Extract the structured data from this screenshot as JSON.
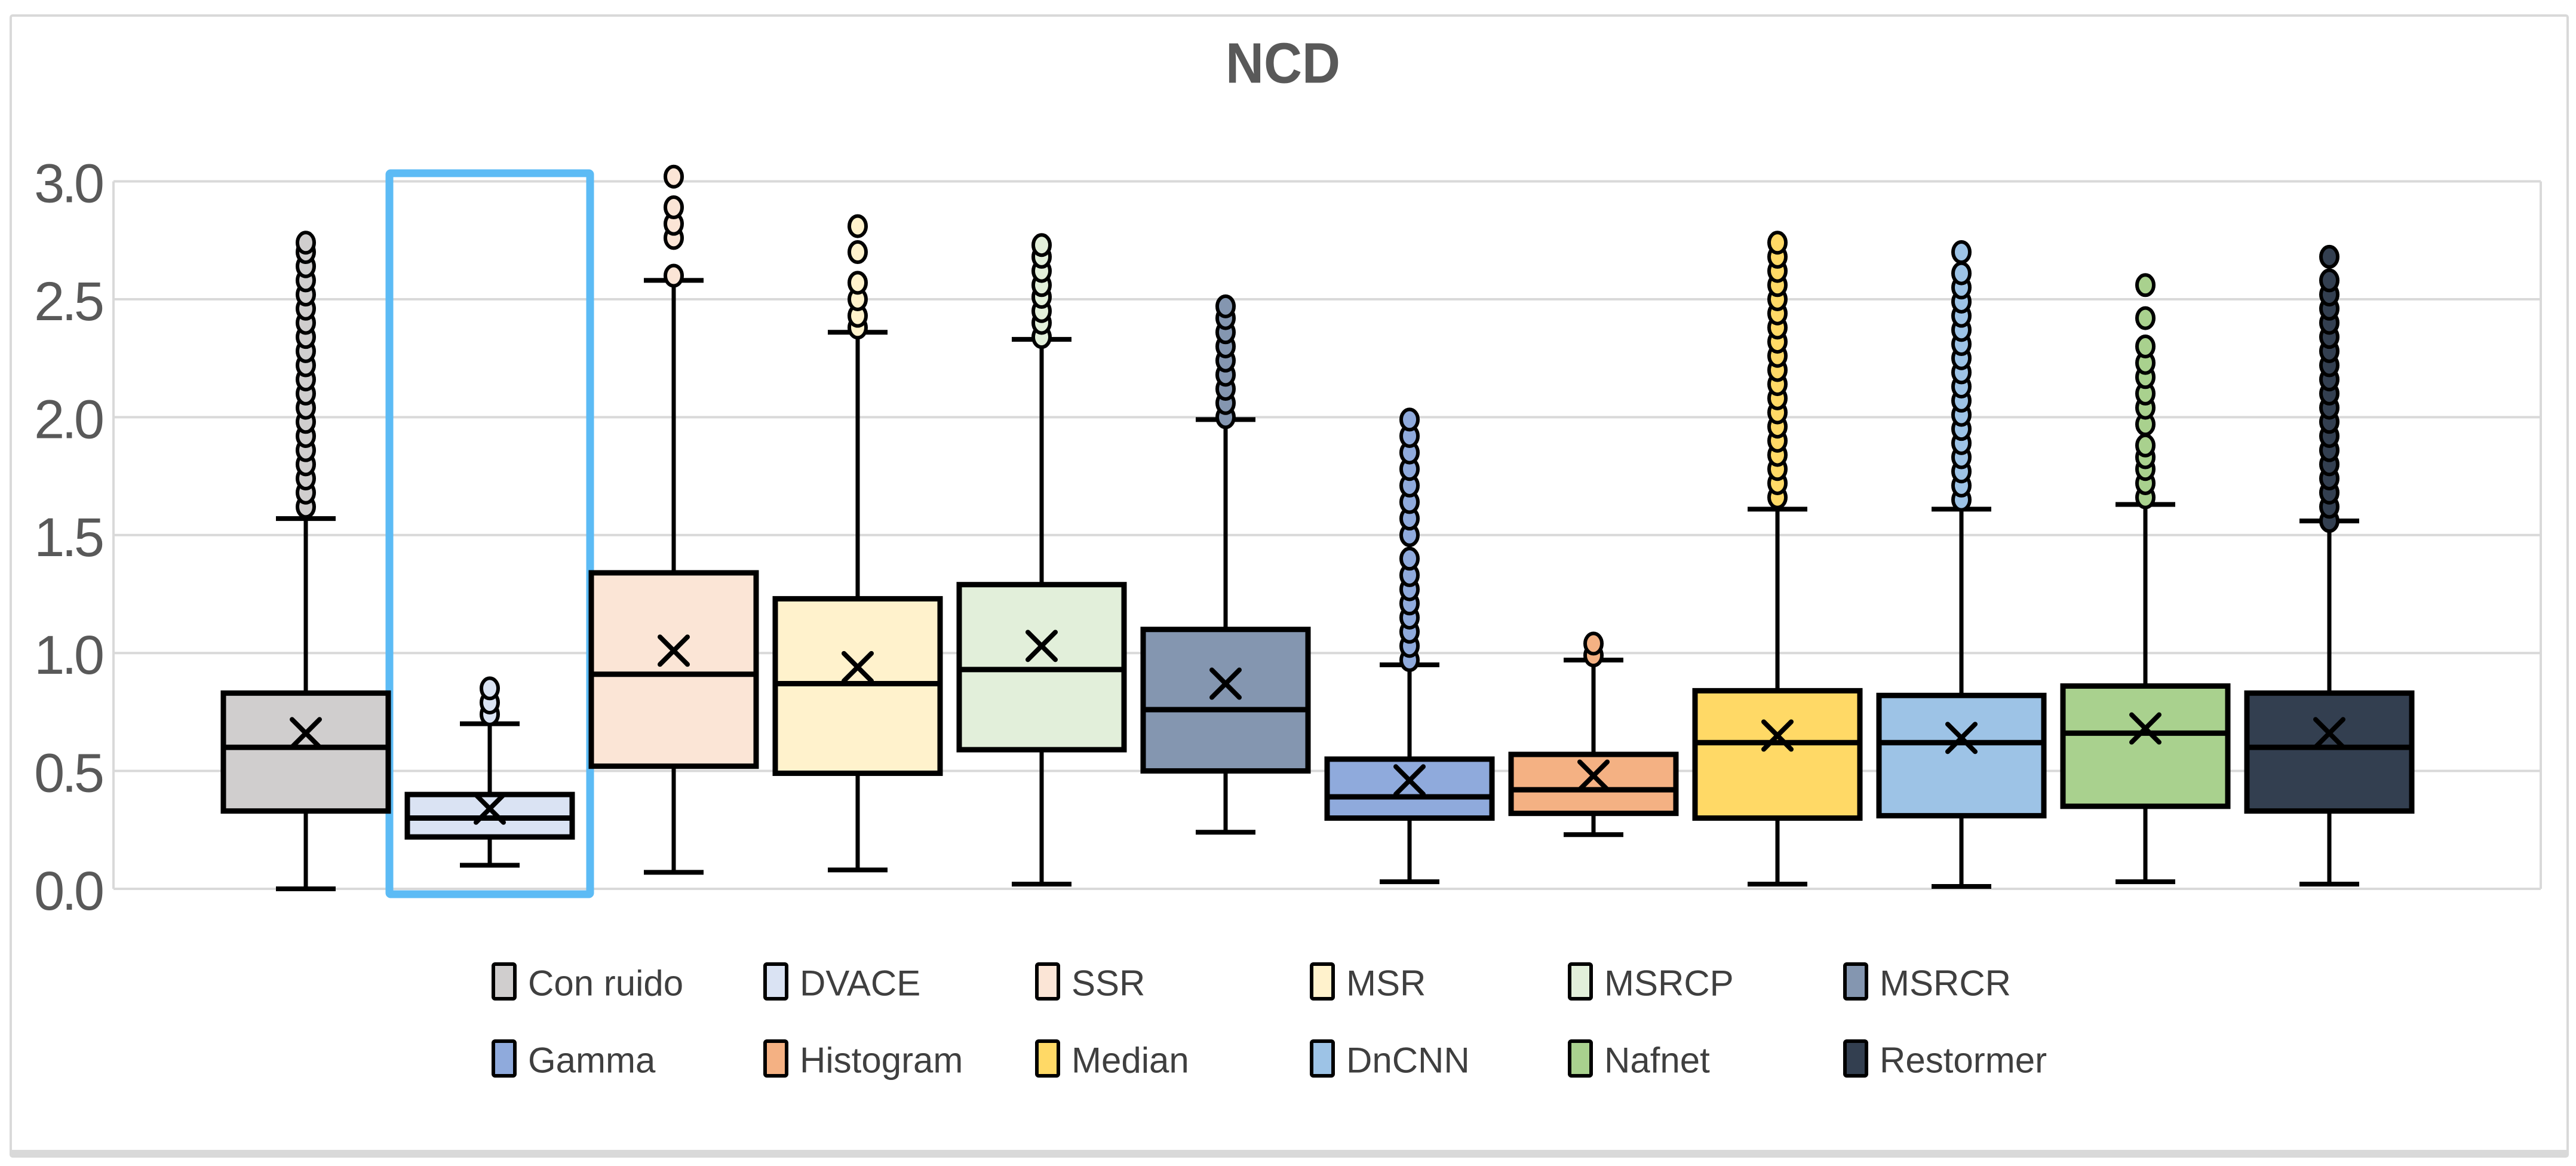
{
  "figure": {
    "background": "#ffffff",
    "border_color": "#d9d9d9"
  },
  "chart_data": {
    "type": "box",
    "title": "NCD",
    "title_color": "#595959",
    "xlabel": "",
    "ylabel": "",
    "ylim": [
      0.0,
      3.0
    ],
    "ytick_labels": [
      "0.0",
      "0.5",
      "1.0",
      "1.5",
      "2.0",
      "2.5",
      "3.0"
    ],
    "grid": true,
    "grid_color": "#d9d9d9",
    "axis_label_color": "#595959",
    "legend_position": "bottom",
    "legend_text_color": "#3f3f3f",
    "legend_rows": [
      [
        "Con ruido",
        "DVACE",
        "SSR",
        "MSR",
        "MSRCP",
        "MSRCR"
      ],
      [
        "Gamma",
        "Histogram",
        "Median",
        "DnCNN",
        "Nafnet",
        "Restormer"
      ]
    ],
    "highlight": {
      "series": "DVACE",
      "color": "#5cbbf5"
    },
    "series": [
      {
        "name": "Con ruido",
        "color": "#d0cece",
        "whisker_low": 0.0,
        "q1": 0.33,
        "median": 0.6,
        "q3": 0.83,
        "whisker_high": 1.57,
        "mean": 0.66,
        "outliers": [
          1.62,
          1.68,
          1.74,
          1.8,
          1.86,
          1.92,
          1.98,
          2.04,
          2.1,
          2.16,
          2.22,
          2.28,
          2.34,
          2.4,
          2.46,
          2.52,
          2.58,
          2.64,
          2.7,
          2.74
        ]
      },
      {
        "name": "DVACE",
        "color": "#dae3f3",
        "whisker_low": 0.1,
        "q1": 0.22,
        "median": 0.3,
        "q3": 0.4,
        "whisker_high": 0.7,
        "mean": 0.34,
        "outliers": [
          0.74,
          0.79,
          0.85
        ]
      },
      {
        "name": "SSR",
        "color": "#fbe5d6",
        "whisker_low": 0.07,
        "q1": 0.52,
        "median": 0.91,
        "q3": 1.34,
        "whisker_high": 2.58,
        "mean": 1.01,
        "outliers": [
          2.6,
          2.76,
          2.82,
          2.89,
          3.02
        ]
      },
      {
        "name": "MSR",
        "color": "#fff2cc",
        "whisker_low": 0.08,
        "q1": 0.49,
        "median": 0.87,
        "q3": 1.23,
        "whisker_high": 2.36,
        "mean": 0.94,
        "outliers": [
          2.38,
          2.43,
          2.5,
          2.57,
          2.7,
          2.81
        ]
      },
      {
        "name": "MSRCP",
        "color": "#e2efda",
        "whisker_low": 0.02,
        "q1": 0.59,
        "median": 0.93,
        "q3": 1.29,
        "whisker_high": 2.33,
        "mean": 1.03,
        "outliers": [
          2.34,
          2.4,
          2.45,
          2.51,
          2.56,
          2.62,
          2.68,
          2.73
        ]
      },
      {
        "name": "MSRCR",
        "color": "#8496b0",
        "whisker_low": 0.24,
        "q1": 0.5,
        "median": 0.76,
        "q3": 1.1,
        "whisker_high": 1.99,
        "mean": 0.87,
        "outliers": [
          2.0,
          2.06,
          2.12,
          2.18,
          2.24,
          2.3,
          2.36,
          2.42,
          2.47
        ]
      },
      {
        "name": "Gamma",
        "color": "#8faadc",
        "whisker_low": 0.03,
        "q1": 0.3,
        "median": 0.39,
        "q3": 0.55,
        "whisker_high": 0.95,
        "mean": 0.46,
        "outliers": [
          0.97,
          1.03,
          1.09,
          1.15,
          1.21,
          1.27,
          1.33,
          1.4,
          1.5,
          1.57,
          1.64,
          1.71,
          1.78,
          1.85,
          1.92,
          1.99
        ]
      },
      {
        "name": "Histogram",
        "color": "#f4b183",
        "whisker_low": 0.23,
        "q1": 0.32,
        "median": 0.42,
        "q3": 0.57,
        "whisker_high": 0.97,
        "mean": 0.48,
        "outliers": [
          0.99,
          1.04
        ]
      },
      {
        "name": "Median",
        "color": "#ffd966",
        "whisker_low": 0.02,
        "q1": 0.3,
        "median": 0.62,
        "q3": 0.84,
        "whisker_high": 1.61,
        "mean": 0.65,
        "outliers": [
          1.66,
          1.72,
          1.78,
          1.84,
          1.9,
          1.96,
          2.02,
          2.08,
          2.14,
          2.2,
          2.26,
          2.32,
          2.38,
          2.44,
          2.5,
          2.56,
          2.62,
          2.68,
          2.74
        ]
      },
      {
        "name": "DnCNN",
        "color": "#9dc3e6",
        "whisker_low": 0.01,
        "q1": 0.31,
        "median": 0.62,
        "q3": 0.82,
        "whisker_high": 1.61,
        "mean": 0.64,
        "outliers": [
          1.65,
          1.71,
          1.77,
          1.83,
          1.89,
          1.95,
          2.01,
          2.07,
          2.13,
          2.19,
          2.25,
          2.31,
          2.37,
          2.43,
          2.49,
          2.55,
          2.61,
          2.7
        ]
      },
      {
        "name": "Nafnet",
        "color": "#a9d18e",
        "whisker_low": 0.03,
        "q1": 0.35,
        "median": 0.66,
        "q3": 0.86,
        "whisker_high": 1.63,
        "mean": 0.68,
        "outliers": [
          1.66,
          1.72,
          1.78,
          1.83,
          1.88,
          1.97,
          2.04,
          2.1,
          2.17,
          2.23,
          2.3,
          2.42,
          2.56
        ]
      },
      {
        "name": "Restormer",
        "color": "#333f50",
        "whisker_low": 0.02,
        "q1": 0.33,
        "median": 0.6,
        "q3": 0.83,
        "whisker_high": 1.56,
        "mean": 0.66,
        "outliers": [
          1.56,
          1.62,
          1.68,
          1.74,
          1.8,
          1.86,
          1.92,
          1.98,
          2.04,
          2.1,
          2.16,
          2.22,
          2.28,
          2.34,
          2.4,
          2.46,
          2.52,
          2.58,
          2.68
        ]
      }
    ]
  }
}
